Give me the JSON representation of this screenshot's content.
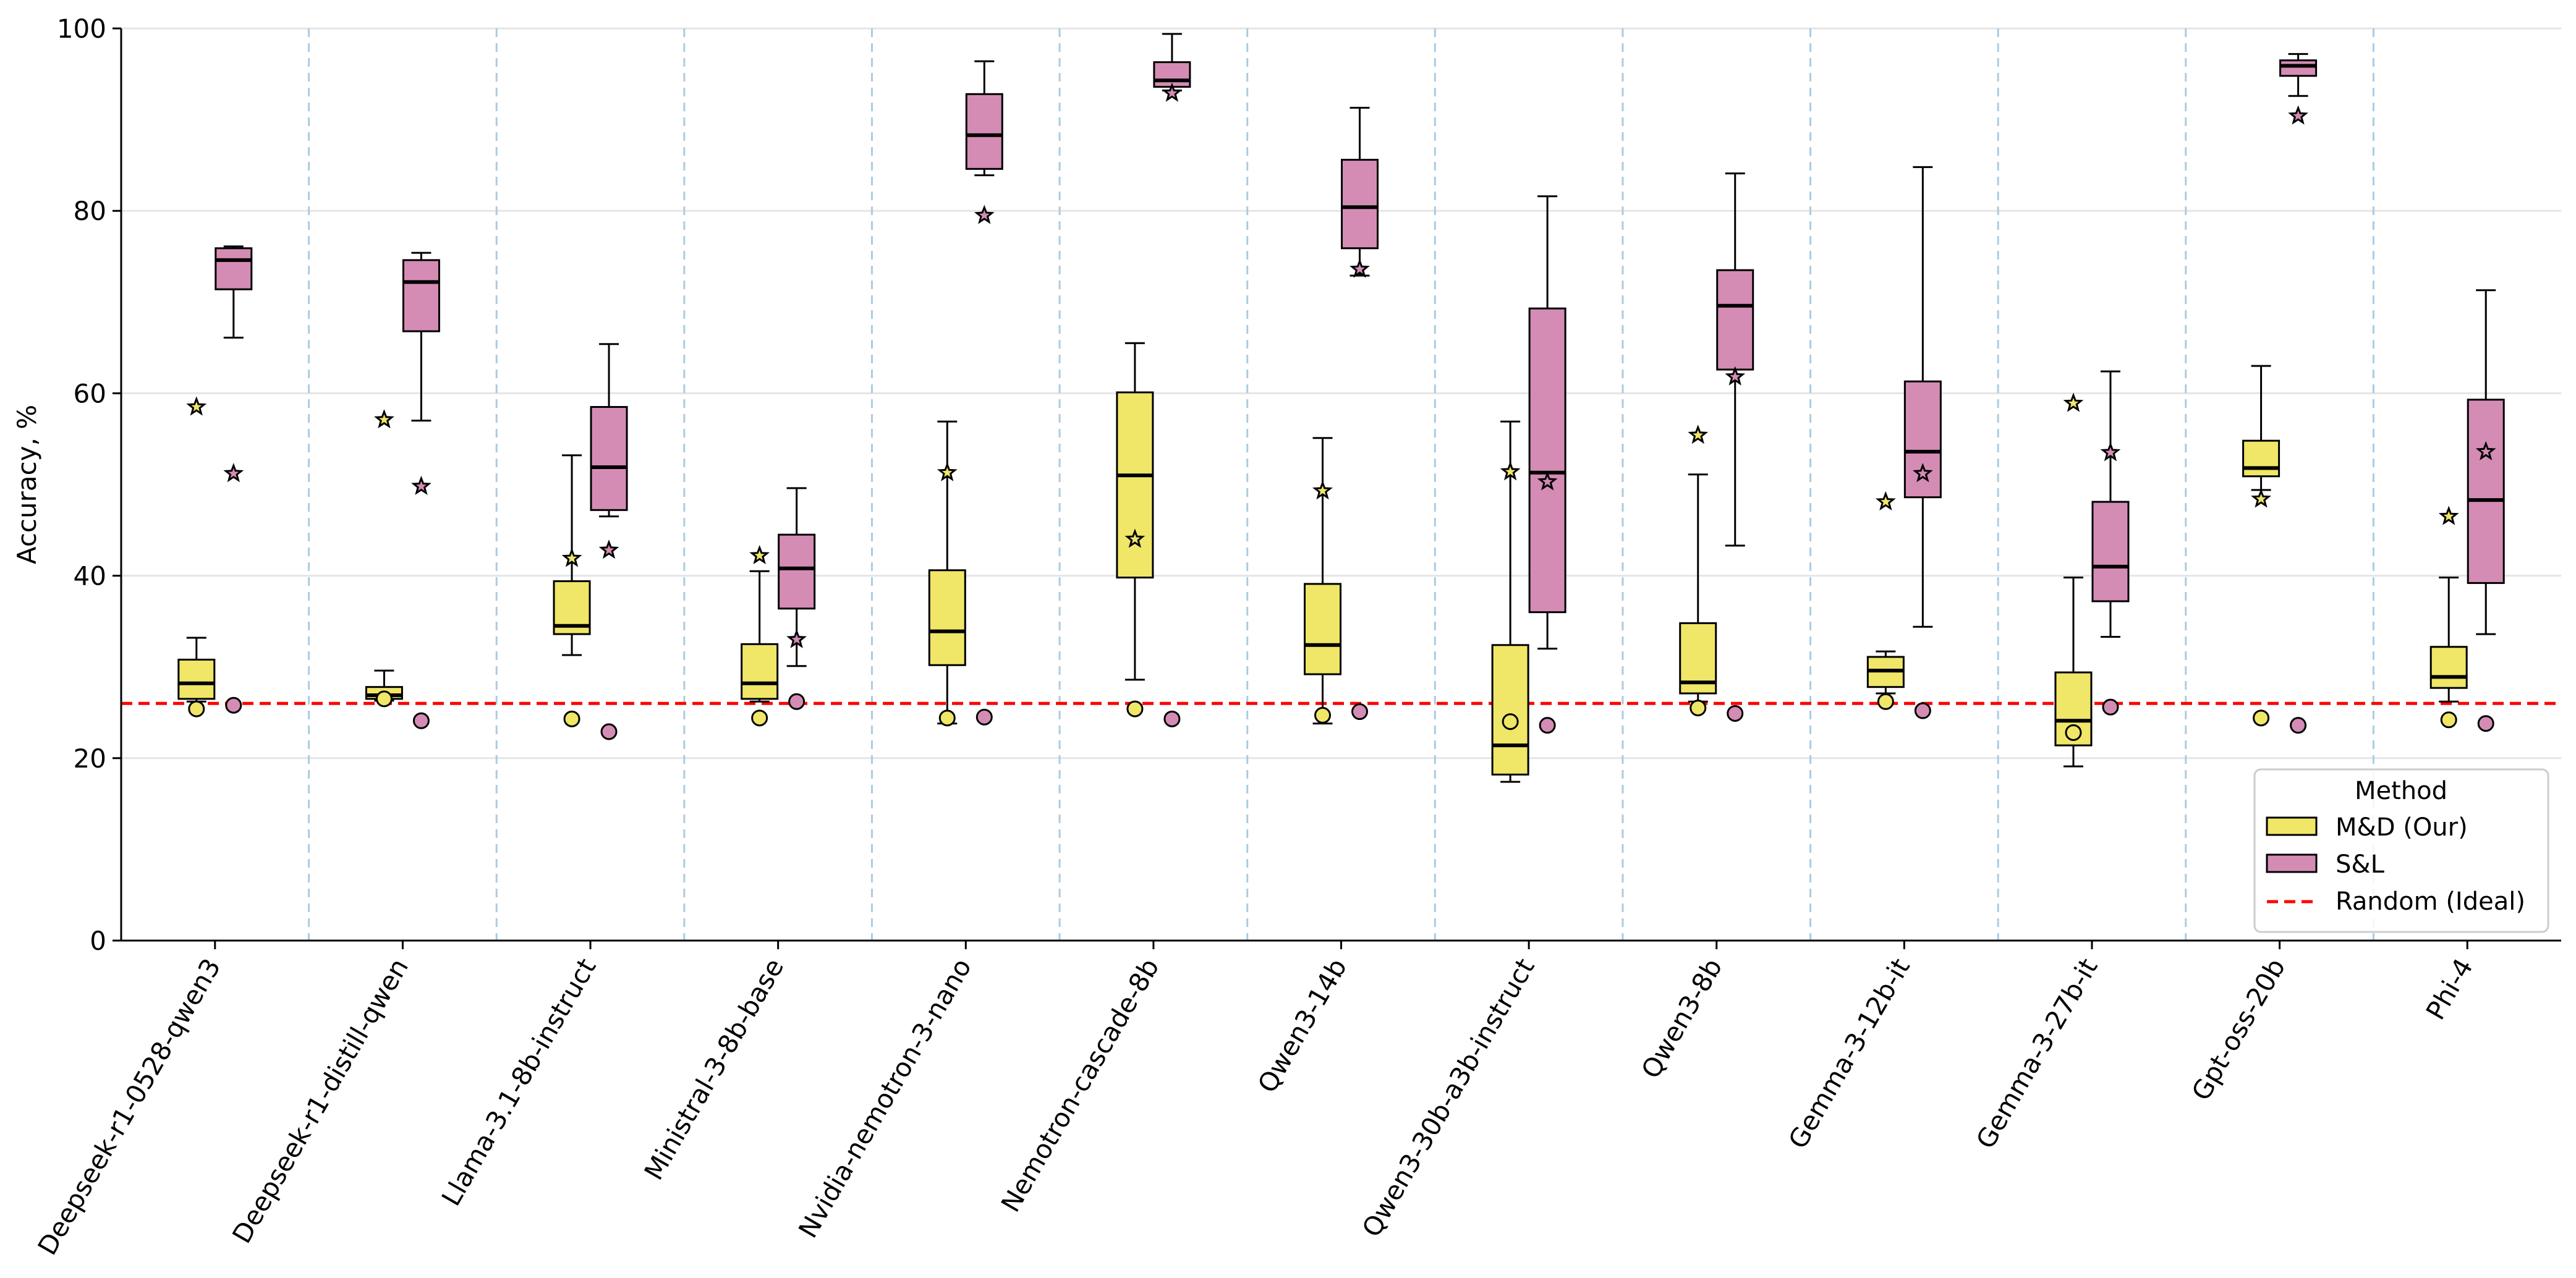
{
  "chart_data": {
    "type": "box",
    "title": "",
    "xlabel": "",
    "ylabel": "Accuracy, %",
    "ylim": [
      0,
      100
    ],
    "yticks": [
      0,
      20,
      40,
      60,
      80,
      100
    ],
    "grid": "horizontal",
    "legend": {
      "title": "Method",
      "placement": "lower-right",
      "entries": [
        "M&D (Our)",
        "S&L",
        "Random (Ideal)"
      ]
    },
    "colors": {
      "md": "#f0e668",
      "sl": "#d48cb5",
      "random_line": "#ff0000",
      "separator": "#a9cce3",
      "grid": "#e5e5e5"
    },
    "random_baseline": 26,
    "categories": [
      "Deepseek-r1-0528-qwen3",
      "Deepseek-r1-distill-qwen",
      "Llama-3.1-8b-instruct",
      "Ministral-3-8b-base",
      "Nvidia-nemotron-3-nano",
      "Nemotron-cascade-8b",
      "Qwen3-14b",
      "Qwen3-30b-a3b-instruct",
      "Qwen3-8b",
      "Gemma-3-12b-it",
      "Gemma-3-27b-it",
      "Gpt-oss-20b",
      "Phi-4"
    ],
    "series": [
      {
        "name": "M&D (Our)",
        "boxes": [
          {
            "whislo": 26.2,
            "q1": 26.5,
            "med": 28.2,
            "q3": 30.8,
            "whishi": 33.2
          },
          {
            "whislo": 26.3,
            "q1": 26.5,
            "med": 26.9,
            "q3": 27.8,
            "whishi": 29.6
          },
          {
            "whislo": 31.3,
            "q1": 33.6,
            "med": 34.5,
            "q3": 39.4,
            "whishi": 53.2
          },
          {
            "whislo": 26.2,
            "q1": 26.5,
            "med": 28.2,
            "q3": 32.5,
            "whishi": 40.5
          },
          {
            "whislo": 23.8,
            "q1": 30.2,
            "med": 33.9,
            "q3": 40.6,
            "whishi": 56.9
          },
          {
            "whislo": 28.6,
            "q1": 39.8,
            "med": 51.0,
            "q3": 60.1,
            "whishi": 65.5
          },
          {
            "whislo": 23.8,
            "q1": 29.2,
            "med": 32.4,
            "q3": 39.1,
            "whishi": 55.1
          },
          {
            "whislo": 17.4,
            "q1": 18.2,
            "med": 21.4,
            "q3": 32.4,
            "whishi": 56.9
          },
          {
            "whislo": 26.2,
            "q1": 27.1,
            "med": 28.3,
            "q3": 34.8,
            "whishi": 51.1
          },
          {
            "whislo": 27.1,
            "q1": 27.8,
            "med": 29.6,
            "q3": 31.1,
            "whishi": 31.7
          },
          {
            "whislo": 19.1,
            "q1": 21.4,
            "med": 24.1,
            "q3": 29.4,
            "whishi": 39.8
          },
          {
            "whislo": 49.4,
            "q1": 50.9,
            "med": 51.8,
            "q3": 54.8,
            "whishi": 63.0
          },
          {
            "whislo": 26.2,
            "q1": 27.7,
            "med": 28.9,
            "q3": 32.2,
            "whishi": 39.8
          }
        ],
        "random_points": [
          25.4,
          26.5,
          24.3,
          24.4,
          24.4,
          25.4,
          24.7,
          24.0,
          25.5,
          26.2,
          22.8,
          24.4,
          24.2
        ],
        "star_points": [
          58.5,
          57.1,
          41.9,
          42.2,
          51.3,
          44.0,
          49.3,
          51.4,
          55.4,
          48.1,
          58.9,
          48.4,
          46.5
        ]
      },
      {
        "name": "S&L",
        "boxes": [
          {
            "whislo": 66.1,
            "q1": 71.4,
            "med": 74.6,
            "q3": 75.9,
            "whishi": 76.1
          },
          {
            "whislo": 57.0,
            "q1": 66.8,
            "med": 72.2,
            "q3": 74.6,
            "whishi": 75.4
          },
          {
            "whislo": 46.5,
            "q1": 47.2,
            "med": 51.9,
            "q3": 58.5,
            "whishi": 65.4
          },
          {
            "whislo": 30.1,
            "q1": 36.4,
            "med": 40.8,
            "q3": 44.5,
            "whishi": 49.6
          },
          {
            "whislo": 83.9,
            "q1": 84.6,
            "med": 88.3,
            "q3": 92.8,
            "whishi": 96.4
          },
          {
            "whislo": 93.2,
            "q1": 93.6,
            "med": 94.3,
            "q3": 96.3,
            "whishi": 99.4
          },
          {
            "whislo": 72.9,
            "q1": 75.9,
            "med": 80.4,
            "q3": 85.6,
            "whishi": 91.3
          },
          {
            "whislo": 32.0,
            "q1": 36.0,
            "med": 51.3,
            "q3": 69.3,
            "whishi": 81.6
          },
          {
            "whislo": 43.3,
            "q1": 62.6,
            "med": 69.6,
            "q3": 73.5,
            "whishi": 84.1
          },
          {
            "whislo": 34.4,
            "q1": 48.6,
            "med": 53.6,
            "q3": 61.3,
            "whishi": 84.8
          },
          {
            "whislo": 33.3,
            "q1": 37.2,
            "med": 41.0,
            "q3": 48.1,
            "whishi": 62.4
          },
          {
            "whislo": 92.6,
            "q1": 94.8,
            "med": 95.9,
            "q3": 96.5,
            "whishi": 97.2
          },
          {
            "whislo": 33.6,
            "q1": 39.2,
            "med": 48.3,
            "q3": 59.3,
            "whishi": 71.3
          }
        ],
        "random_points": [
          25.8,
          24.1,
          22.9,
          26.2,
          24.5,
          24.3,
          25.1,
          23.6,
          24.9,
          25.2,
          25.6,
          23.6,
          23.8
        ],
        "star_points": [
          51.2,
          49.8,
          42.8,
          33.0,
          79.5,
          92.9,
          73.6,
          50.3,
          61.8,
          51.2,
          53.5,
          90.4,
          53.6
        ]
      }
    ]
  }
}
